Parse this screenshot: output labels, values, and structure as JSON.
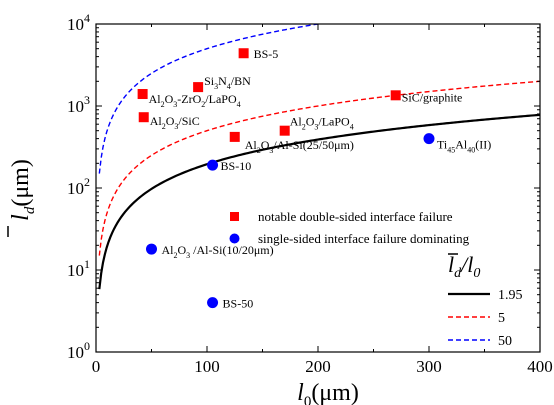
{
  "chart_data": {
    "type": "scatter",
    "xlabel_main": "l",
    "xlabel_sub": "0",
    "xlabel_unit": "(μm)",
    "ylabel_main": "l",
    "ylabel_sub": "d",
    "ylabel_unit": "(μm)",
    "xlim": [
      0,
      400
    ],
    "ylim": [
      1,
      10000
    ],
    "yscale": "log",
    "x_ticks": [
      0,
      100,
      200,
      300,
      400
    ],
    "x_tick_labels": [
      "0",
      "100",
      "200",
      "300",
      "400"
    ],
    "y_ticks": [
      1,
      10,
      100,
      1000,
      10000
    ],
    "y_tick_labels": [
      {
        "base": "10",
        "exp": "0"
      },
      {
        "base": "10",
        "exp": "1"
      },
      {
        "base": "10",
        "exp": "2"
      },
      {
        "base": "10",
        "exp": "3"
      },
      {
        "base": "10",
        "exp": "4"
      }
    ],
    "grid": false,
    "colors": {
      "red": "#ff0000",
      "blue": "#0000ff",
      "black": "#000000"
    },
    "squares": [
      {
        "x": 133,
        "y": 4400,
        "label": [
          {
            "t": "BS-5"
          }
        ]
      },
      {
        "x": 92,
        "y": 1700,
        "label": [
          {
            "t": "Si"
          },
          {
            "t": "3",
            "s": "sub"
          },
          {
            "t": "N"
          },
          {
            "t": "4",
            "s": "sub"
          },
          {
            "t": "/BN"
          }
        ]
      },
      {
        "x": 42,
        "y": 1400,
        "label": [
          {
            "t": "Al"
          },
          {
            "t": "2",
            "s": "sub"
          },
          {
            "t": "O"
          },
          {
            "t": "3",
            "s": "sub"
          },
          {
            "t": "-ZrO"
          },
          {
            "t": "2",
            "s": "sub"
          },
          {
            "t": "/LaPO"
          },
          {
            "t": "4",
            "s": "sub"
          }
        ]
      },
      {
        "x": 43,
        "y": 730,
        "label": [
          {
            "t": "Al"
          },
          {
            "t": "2",
            "s": "sub"
          },
          {
            "t": "O"
          },
          {
            "t": "3",
            "s": "sub"
          },
          {
            "t": "/SiC"
          }
        ]
      },
      {
        "x": 270,
        "y": 1350,
        "label": [
          {
            "t": "SiC/graphite"
          }
        ]
      },
      {
        "x": 170,
        "y": 500,
        "label": [
          {
            "t": "Al"
          },
          {
            "t": "2",
            "s": "sub"
          },
          {
            "t": "O"
          },
          {
            "t": "3",
            "s": "sub"
          },
          {
            "t": "/LaPO"
          },
          {
            "t": "4",
            "s": "sub"
          }
        ]
      },
      {
        "x": 125,
        "y": 420,
        "label": [
          {
            "t": "Al"
          },
          {
            "t": "2",
            "s": "sub"
          },
          {
            "t": "O"
          },
          {
            "t": "3",
            "s": "sub"
          },
          {
            "t": "/Al-Si(25/50μm)"
          }
        ]
      }
    ],
    "circles": [
      {
        "x": 300,
        "y": 400,
        "label": [
          {
            "t": "Ti"
          },
          {
            "t": "45",
            "s": "sub"
          },
          {
            "t": "Al"
          },
          {
            "t": "40",
            "s": "sub"
          },
          {
            "t": "(II)"
          }
        ]
      },
      {
        "x": 105,
        "y": 190,
        "label": [
          {
            "t": "BS-10"
          }
        ]
      },
      {
        "x": 50,
        "y": 18,
        "label": [
          {
            "t": "Al"
          },
          {
            "t": "2",
            "s": "sub"
          },
          {
            "t": "O"
          },
          {
            "t": "3",
            "s": "sub"
          },
          {
            "t": " /Al-Si(10/20μm)"
          }
        ]
      },
      {
        "x": 105,
        "y": 4,
        "label": [
          {
            "t": "BS-50"
          }
        ]
      }
    ],
    "marker_legend": [
      {
        "marker": "square",
        "color": "#ff0000",
        "label": "notable double-sided interface failure"
      },
      {
        "marker": "circle",
        "color": "#0000ff",
        "label": "single-sided interface failure dominating"
      }
    ],
    "line_legend_title": {
      "main": "l",
      "sub_d": "d",
      "slash": "/",
      "l0_main": "l",
      "l0_sub": "0"
    },
    "series": [
      {
        "name": "1.95",
        "color": "#000000",
        "dash": "solid",
        "ratio": 1.95
      },
      {
        "name": "5",
        "color": "#ff0000",
        "dash": "dashed",
        "ratio": 5
      },
      {
        "name": "50",
        "color": "#0000ff",
        "dash": "dashed",
        "ratio": 50
      }
    ]
  }
}
